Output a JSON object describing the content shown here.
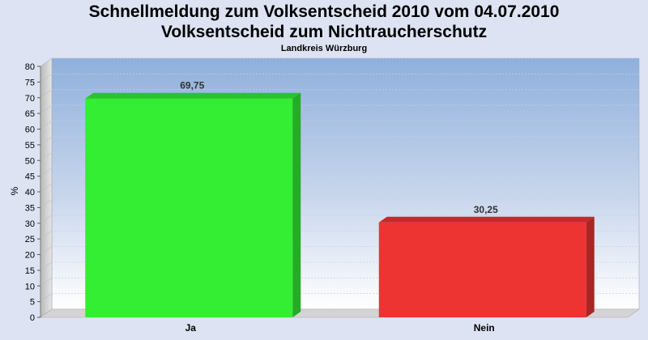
{
  "chart_data": {
    "type": "bar",
    "title": "Schnellmeldung zum Volksentscheid 2010 vom 04.07.2010",
    "subtitle": "Volksentscheid zum Nichtraucherschutz",
    "subtitle2": "Landkreis Würzburg",
    "ylabel": "%",
    "xlabel": "",
    "categories": [
      "Ja",
      "Nein"
    ],
    "values": [
      69.75,
      30.25
    ],
    "value_labels": [
      "69,75",
      "30,25"
    ],
    "colors": [
      "#33ee33",
      "#ee3333"
    ],
    "ylim": [
      0,
      80
    ],
    "ytick_step": 5,
    "grid": true,
    "legend": "none"
  }
}
